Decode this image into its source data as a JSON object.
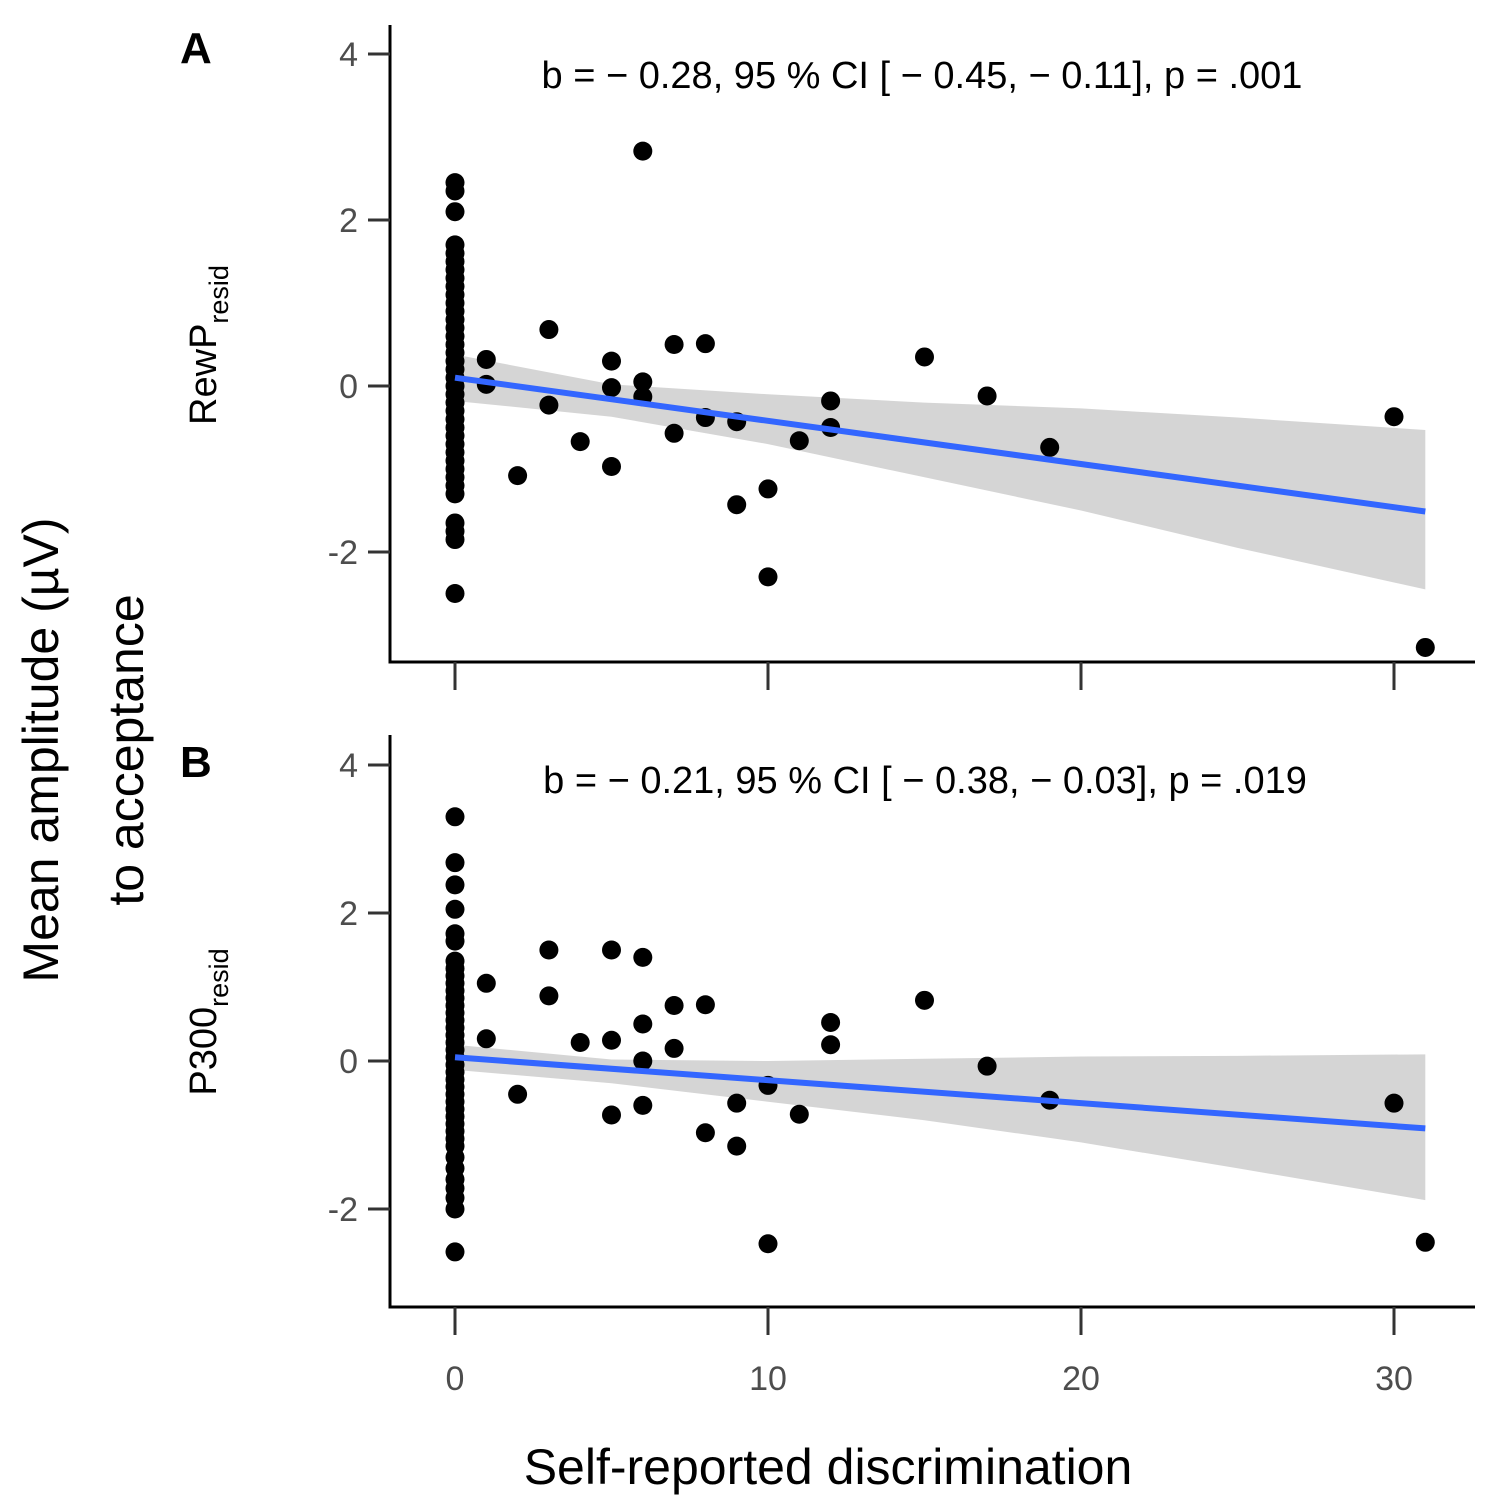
{
  "figure": {
    "x_axis_title": "Self-reported discrimination",
    "y_axis_title_line1": "Mean amplitude (µV)",
    "y_axis_title_line2": "to acceptance"
  },
  "colors": {
    "points": "#000000",
    "fit_line": "#3366FF",
    "ci_band": "#D3D3D3",
    "axis": "#000000",
    "tick_label": "#4d4d4d"
  },
  "chart_data": [
    {
      "type": "scatter",
      "panel": "A",
      "annotation": "b = − 0.28, 95 %  CI [ − 0.45,  − 0.11], p = .001",
      "ylabel_main": "RewP",
      "ylabel_sub": "resid",
      "xlabel": "",
      "xlim": [
        -2,
        32.5
      ],
      "ylim": [
        -3.3,
        4.3
      ],
      "xticks": [
        0,
        10,
        20,
        30
      ],
      "xtick_labels": [
        "",
        "",
        "",
        ""
      ],
      "yticks": [
        -2,
        0,
        2,
        4
      ],
      "ytick_labels": [
        "-2",
        "0",
        "2",
        "4"
      ],
      "points": [
        [
          0,
          2.45
        ],
        [
          0,
          2.35
        ],
        [
          0,
          2.1
        ],
        [
          0,
          1.7
        ],
        [
          0,
          1.6
        ],
        [
          0,
          1.5
        ],
        [
          0,
          1.4
        ],
        [
          0,
          1.3
        ],
        [
          0,
          1.2
        ],
        [
          0,
          1.1
        ],
        [
          0,
          1.0
        ],
        [
          0,
          0.9
        ],
        [
          0,
          0.8
        ],
        [
          0,
          0.7
        ],
        [
          0,
          0.6
        ],
        [
          0,
          0.5
        ],
        [
          0,
          0.4
        ],
        [
          0,
          0.3
        ],
        [
          0,
          0.2
        ],
        [
          0,
          0.1
        ],
        [
          0,
          0.0
        ],
        [
          0,
          -0.1
        ],
        [
          0,
          -0.2
        ],
        [
          0,
          -0.3
        ],
        [
          0,
          -0.4
        ],
        [
          0,
          -0.5
        ],
        [
          0,
          -0.6
        ],
        [
          0,
          -0.7
        ],
        [
          0,
          -0.8
        ],
        [
          0,
          -0.9
        ],
        [
          0,
          -1.0
        ],
        [
          0,
          -1.1
        ],
        [
          0,
          -1.2
        ],
        [
          0,
          -1.3
        ],
        [
          0,
          -1.65
        ],
        [
          0,
          -1.75
        ],
        [
          0,
          -1.85
        ],
        [
          0,
          -2.5
        ],
        [
          1,
          0.32
        ],
        [
          1,
          0.02
        ],
        [
          2,
          -1.08
        ],
        [
          3,
          0.68
        ],
        [
          3,
          -0.23
        ],
        [
          4,
          -0.67
        ],
        [
          5,
          0.3
        ],
        [
          5,
          -0.02
        ],
        [
          5,
          -0.97
        ],
        [
          6,
          2.83
        ],
        [
          6,
          0.05
        ],
        [
          6,
          -0.13
        ],
        [
          7,
          0.5
        ],
        [
          7,
          -0.57
        ],
        [
          8,
          0.51
        ],
        [
          8,
          -0.38
        ],
        [
          9,
          -0.43
        ],
        [
          9,
          -1.43
        ],
        [
          10,
          -1.24
        ],
        [
          10,
          -2.3
        ],
        [
          11,
          -0.66
        ],
        [
          12,
          -0.18
        ],
        [
          12,
          -0.5
        ],
        [
          15,
          0.35
        ],
        [
          17,
          -0.12
        ],
        [
          19,
          -0.74
        ],
        [
          30,
          -0.37
        ],
        [
          31,
          -3.15
        ]
      ],
      "fit": {
        "intercept": 0.1,
        "slope": -0.052,
        "x_range": [
          0,
          31
        ]
      },
      "ci": [
        {
          "x": 0,
          "lower": -0.18,
          "upper": 0.38
        },
        {
          "x": 5,
          "lower": -0.37,
          "upper": 0.02
        },
        {
          "x": 10,
          "lower": -0.7,
          "upper": -0.1
        },
        {
          "x": 15,
          "lower": -1.1,
          "upper": -0.2
        },
        {
          "x": 20,
          "lower": -1.5,
          "upper": -0.27
        },
        {
          "x": 25,
          "lower": -1.95,
          "upper": -0.38
        },
        {
          "x": 31,
          "lower": -2.45,
          "upper": -0.53
        }
      ]
    },
    {
      "type": "scatter",
      "panel": "B",
      "annotation": "b = − 0.21, 95 %  CI [ − 0.38,  − 0.03], p = .019",
      "ylabel_main": "P300",
      "ylabel_sub": "resid",
      "xlabel": "Self-reported discrimination",
      "xlim": [
        -2,
        32.5
      ],
      "ylim": [
        -3.3,
        4.3
      ],
      "xticks": [
        0,
        10,
        20,
        30
      ],
      "xtick_labels": [
        "0",
        "10",
        "20",
        "30"
      ],
      "yticks": [
        -2,
        0,
        2,
        4
      ],
      "ytick_labels": [
        "-2",
        "0",
        "2",
        "4"
      ],
      "points": [
        [
          0,
          3.3
        ],
        [
          0,
          2.68
        ],
        [
          0,
          2.38
        ],
        [
          0,
          2.05
        ],
        [
          0,
          1.72
        ],
        [
          0,
          1.62
        ],
        [
          0,
          1.35
        ],
        [
          0,
          1.25
        ],
        [
          0,
          1.15
        ],
        [
          0,
          1.05
        ],
        [
          0,
          0.95
        ],
        [
          0,
          0.85
        ],
        [
          0,
          0.75
        ],
        [
          0,
          0.65
        ],
        [
          0,
          0.55
        ],
        [
          0,
          0.45
        ],
        [
          0,
          0.35
        ],
        [
          0,
          0.25
        ],
        [
          0,
          0.15
        ],
        [
          0,
          0.05
        ],
        [
          0,
          -0.05
        ],
        [
          0,
          -0.15
        ],
        [
          0,
          -0.25
        ],
        [
          0,
          -0.35
        ],
        [
          0,
          -0.45
        ],
        [
          0,
          -0.55
        ],
        [
          0,
          -0.65
        ],
        [
          0,
          -0.75
        ],
        [
          0,
          -0.85
        ],
        [
          0,
          -0.95
        ],
        [
          0,
          -1.05
        ],
        [
          0,
          -1.15
        ],
        [
          0,
          -1.3
        ],
        [
          0,
          -1.45
        ],
        [
          0,
          -1.6
        ],
        [
          0,
          -1.72
        ],
        [
          0,
          -1.85
        ],
        [
          0,
          -2.0
        ],
        [
          0,
          -2.58
        ],
        [
          1,
          1.05
        ],
        [
          1,
          0.3
        ],
        [
          2,
          -0.45
        ],
        [
          3,
          1.5
        ],
        [
          3,
          0.88
        ],
        [
          4,
          0.25
        ],
        [
          5,
          1.5
        ],
        [
          5,
          0.28
        ],
        [
          5,
          -0.73
        ],
        [
          6,
          1.4
        ],
        [
          6,
          0.5
        ],
        [
          6,
          0.0
        ],
        [
          6,
          -0.6
        ],
        [
          7,
          0.75
        ],
        [
          7,
          0.17
        ],
        [
          8,
          0.76
        ],
        [
          8,
          -0.97
        ],
        [
          9,
          -0.57
        ],
        [
          9,
          -1.15
        ],
        [
          10,
          -0.33
        ],
        [
          10,
          -2.47
        ],
        [
          11,
          -0.72
        ],
        [
          12,
          0.52
        ],
        [
          12,
          0.22
        ],
        [
          15,
          0.82
        ],
        [
          17,
          -0.07
        ],
        [
          19,
          -0.53
        ],
        [
          30,
          -0.57
        ],
        [
          31,
          -2.45
        ]
      ],
      "fit": {
        "intercept": 0.05,
        "slope": -0.031,
        "x_range": [
          0,
          31
        ]
      },
      "ci": [
        {
          "x": 0,
          "lower": -0.12,
          "upper": 0.22
        },
        {
          "x": 5,
          "lower": -0.3,
          "upper": 0.02
        },
        {
          "x": 10,
          "lower": -0.55,
          "upper": -0.0
        },
        {
          "x": 15,
          "lower": -0.8,
          "upper": 0.03
        },
        {
          "x": 20,
          "lower": -1.1,
          "upper": 0.06
        },
        {
          "x": 25,
          "lower": -1.45,
          "upper": 0.07
        },
        {
          "x": 31,
          "lower": -1.88,
          "upper": 0.09
        }
      ]
    }
  ]
}
